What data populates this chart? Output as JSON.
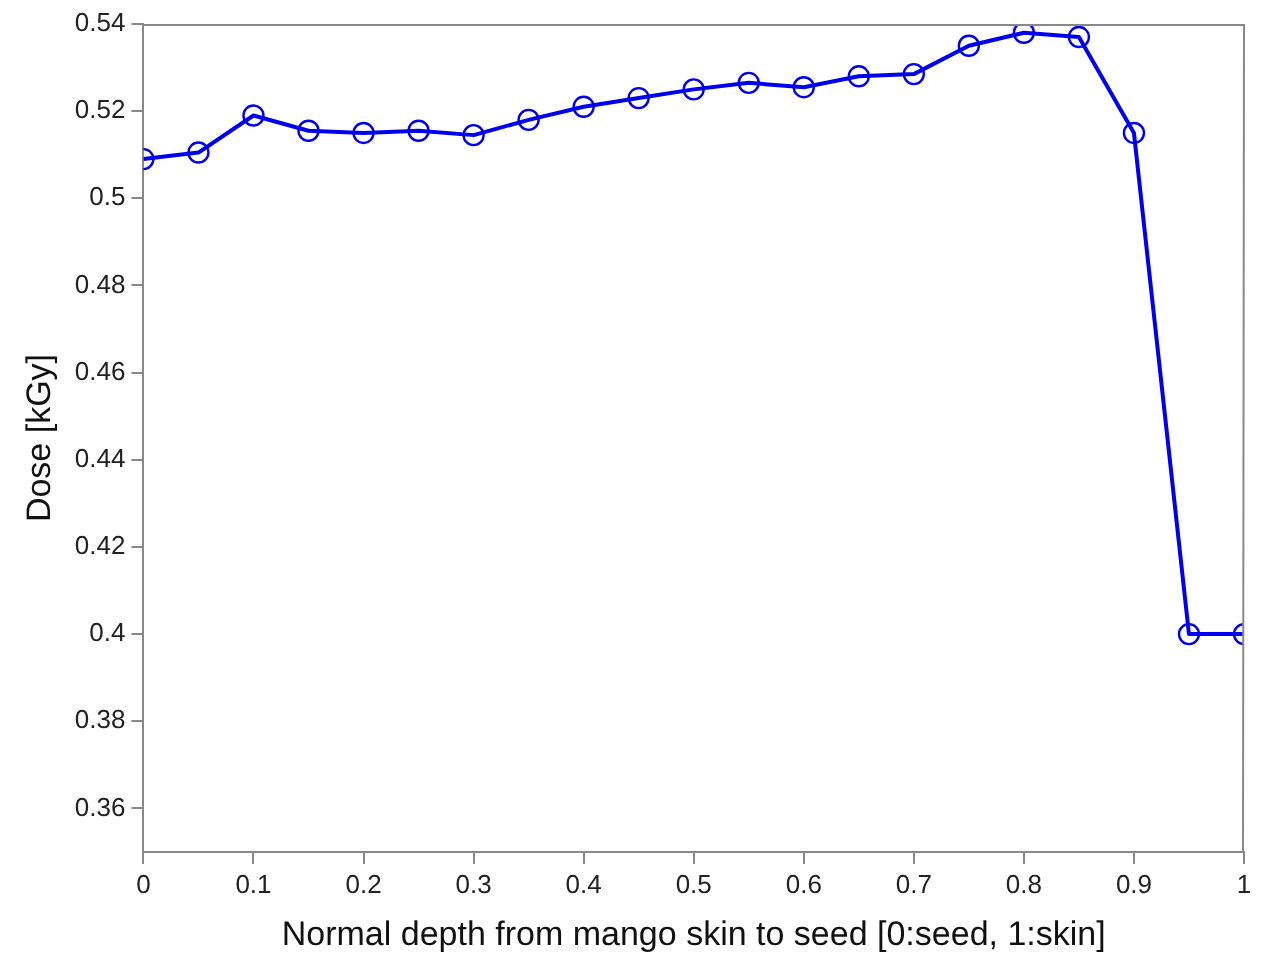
{
  "chart_data": {
    "type": "line",
    "xlabel": "Normal depth from mango skin to seed [0:seed, 1:skin]",
    "ylabel": "Dose [kGy]",
    "x": [
      0,
      0.05,
      0.1,
      0.15,
      0.2,
      0.25,
      0.3,
      0.35,
      0.4,
      0.45,
      0.5,
      0.55,
      0.6,
      0.65,
      0.7,
      0.75,
      0.8,
      0.85,
      0.9,
      0.95,
      1
    ],
    "series": [
      {
        "color": "#0000ee",
        "values": [
          0.509,
          0.5105,
          0.519,
          0.5155,
          0.515,
          0.5155,
          0.5145,
          0.518,
          0.521,
          0.523,
          0.525,
          0.5265,
          0.5255,
          0.528,
          0.5285,
          0.535,
          0.538,
          0.537,
          0.515,
          0.4,
          0.4
        ]
      }
    ],
    "xlim": [
      0,
      1
    ],
    "xticks": [
      0,
      0.1,
      0.2,
      0.3,
      0.4,
      0.5,
      0.6,
      0.7,
      0.8,
      0.9,
      1
    ],
    "ylim": [
      0.35,
      0.54
    ],
    "yticks": [
      0.36,
      0.38,
      0.4,
      0.42,
      0.44,
      0.46,
      0.48,
      0.5,
      0.52,
      0.54
    ],
    "grid": false,
    "legend": false,
    "marker": "circle",
    "line_style": "solid"
  }
}
